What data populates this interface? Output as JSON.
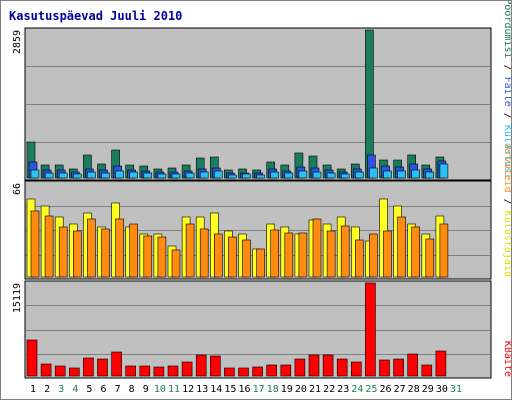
{
  "title": "Kasutuspäevad Juuli 2010",
  "colors": {
    "panel_bg": "#c0c0c0",
    "grid": "#808080",
    "pages": "#1a7d60",
    "files": "#2c54e0",
    "hits": "#29c1f5",
    "visits": "#ffff20",
    "sites": "#ff8c10",
    "kbytes": "#ff0000",
    "weekend_label": "#1a8050"
  },
  "chart_data": [
    {
      "type": "bar",
      "y_tick_label": "2859",
      "ylim": [
        0,
        2859
      ],
      "series": [
        {
          "name": "Pöördumisi",
          "values": [
            700,
            250,
            250,
            180,
            450,
            280,
            550,
            250,
            230,
            180,
            200,
            250,
            380,
            400,
            150,
            180,
            150,
            300,
            250,
            480,
            420,
            250,
            180,
            280,
            2859,
            350,
            350,
            450,
            250,
            400,
            0
          ]
        },
        {
          "name": "Faile",
          "values": [
            300,
            160,
            160,
            110,
            170,
            160,
            240,
            160,
            130,
            110,
            120,
            140,
            180,
            200,
            90,
            100,
            90,
            170,
            140,
            220,
            200,
            160,
            110,
            170,
            450,
            230,
            220,
            280,
            170,
            330,
            0
          ]
        },
        {
          "name": "Külastusi",
          "values": [
            160,
            100,
            100,
            70,
            110,
            100,
            140,
            110,
            90,
            70,
            80,
            90,
            120,
            130,
            60,
            70,
            60,
            110,
            90,
            140,
            120,
            100,
            70,
            110,
            200,
            140,
            140,
            160,
            110,
            270,
            0
          ]
        }
      ]
    },
    {
      "type": "bar",
      "y_tick_label": "66",
      "ylim": [
        0,
        66
      ],
      "series": [
        {
          "name": "Külastajaid",
          "values": [
            55,
            50,
            42,
            37,
            45,
            35,
            52,
            35,
            30,
            30,
            22,
            42,
            42,
            45,
            32,
            30,
            20,
            37,
            35,
            30,
            40,
            37,
            42,
            35,
            25,
            55,
            50,
            37,
            30,
            43,
            0
          ]
        },
        {
          "name": "Arvuteid",
          "values": [
            46,
            43,
            35,
            32,
            41,
            34,
            41,
            37,
            29,
            28,
            19,
            37,
            34,
            30,
            28,
            26,
            20,
            33,
            31,
            31,
            41,
            32,
            36,
            26,
            30,
            32,
            42,
            35,
            27,
            37,
            0
          ]
        }
      ]
    },
    {
      "type": "bar",
      "y_tick_label": "15119",
      "ylim": [
        0,
        15119
      ],
      "series": [
        {
          "name": "KBaite",
          "values": [
            5800,
            2000,
            1700,
            1300,
            3000,
            2800,
            3900,
            1700,
            1600,
            1500,
            1600,
            2300,
            3400,
            3200,
            1300,
            1300,
            1500,
            1800,
            1800,
            2800,
            3400,
            3400,
            2800,
            2200,
            15119,
            2600,
            2800,
            3500,
            1800,
            4000,
            0
          ]
        }
      ]
    }
  ],
  "x_labels": [
    "1",
    "2",
    "3",
    "4",
    "5",
    "6",
    "7",
    "8",
    "9",
    "10",
    "11",
    "12",
    "13",
    "14",
    "15",
    "16",
    "17",
    "18",
    "19",
    "20",
    "21",
    "22",
    "23",
    "24",
    "25",
    "26",
    "27",
    "28",
    "29",
    "30",
    "31"
  ],
  "weekend_days": [
    "3",
    "4",
    "10",
    "11",
    "17",
    "18",
    "24",
    "25",
    "31"
  ],
  "legend_right_top": [
    {
      "text": "Pöördumisi",
      "color": "#1a7d60"
    },
    {
      "text": " / ",
      "color": "#000000"
    },
    {
      "text": "Faile",
      "color": "#2c54e0"
    },
    {
      "text": " / ",
      "color": "#000000"
    },
    {
      "text": "Külastusi",
      "color": "#29c1f5"
    }
  ],
  "legend_right_mid": [
    {
      "text": "Arvuteid",
      "color": "#ff8c10"
    },
    {
      "text": " / ",
      "color": "#000000"
    },
    {
      "text": "Külastajaid",
      "color": "#e0e000"
    }
  ],
  "legend_right_bot": [
    {
      "text": "KBaite",
      "color": "#ff0000"
    }
  ]
}
